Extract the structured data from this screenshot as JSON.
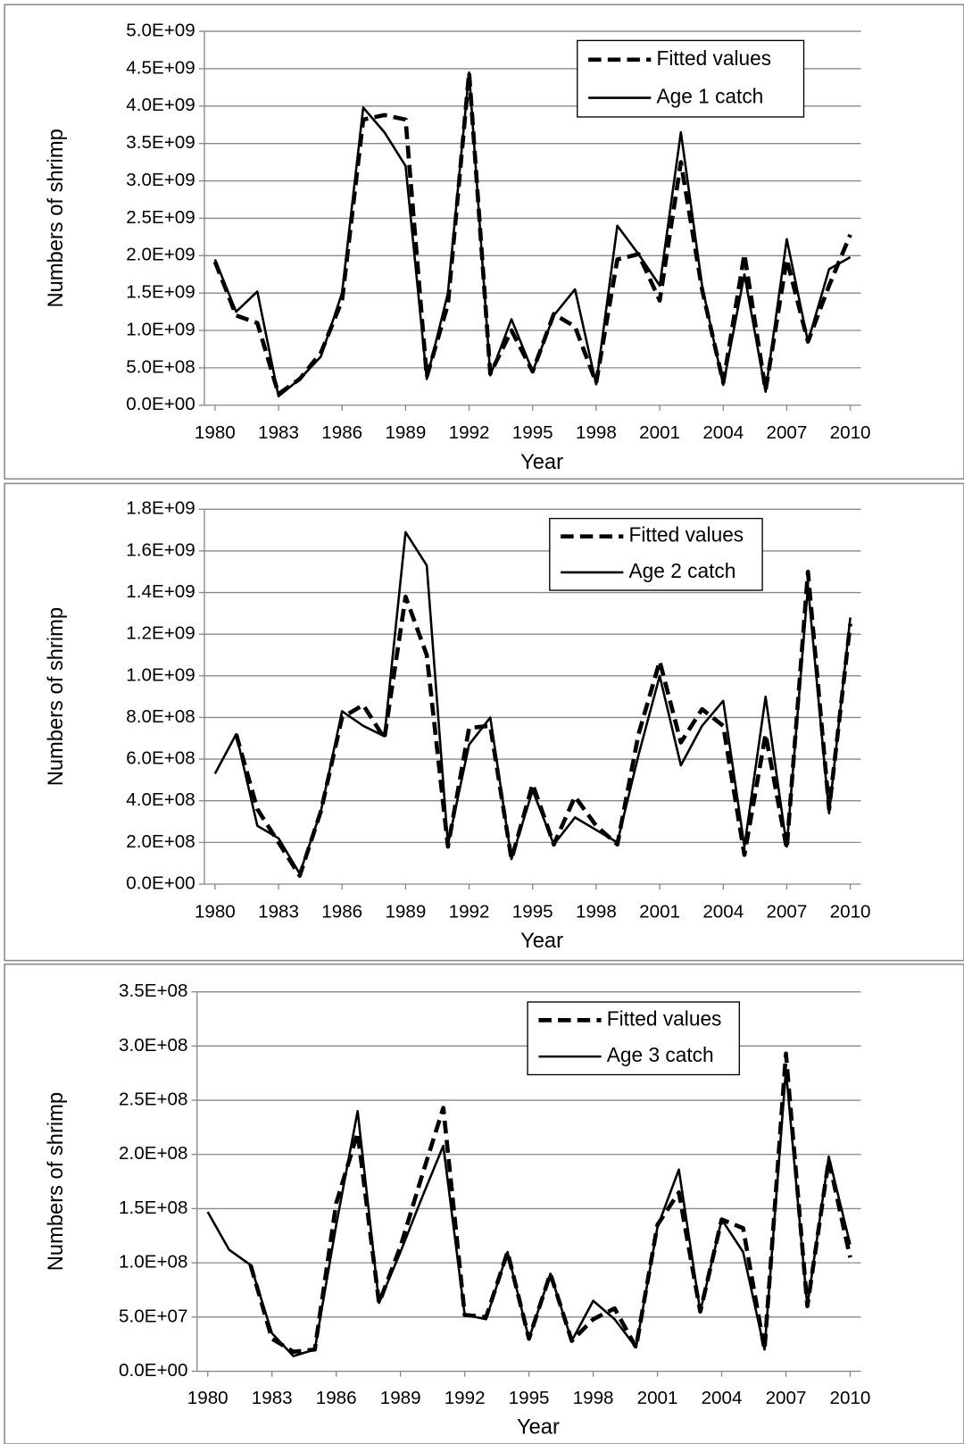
{
  "chart_data": [
    {
      "type": "line",
      "x_label": "Year",
      "y_label": "Numbers of shrimp",
      "grid": true,
      "legend": "upper right",
      "x": [
        1980,
        1981,
        1982,
        1983,
        1984,
        1985,
        1986,
        1987,
        1988,
        1989,
        1990,
        1991,
        1992,
        1993,
        1994,
        1995,
        1996,
        1997,
        1998,
        1999,
        2000,
        2001,
        2002,
        2003,
        2004,
        2005,
        2006,
        2007,
        2008,
        2009,
        2010
      ],
      "xlim": [
        1979.5,
        2010.5
      ],
      "xticks": [
        1980,
        1983,
        1986,
        1989,
        1992,
        1995,
        1998,
        2001,
        2004,
        2007,
        2010
      ],
      "ylim": [
        0,
        5000000000.0
      ],
      "yticks": [
        {
          "value": 0,
          "label": "0.0E+00"
        },
        {
          "value": 500000000.0,
          "label": "5.0E+08"
        },
        {
          "value": 1000000000.0,
          "label": "1.0E+09"
        },
        {
          "value": 1500000000.0,
          "label": "1.5E+09"
        },
        {
          "value": 2000000000.0,
          "label": "2.0E+09"
        },
        {
          "value": 2500000000.0,
          "label": "2.5E+09"
        },
        {
          "value": 3000000000.0,
          "label": "3.0E+09"
        },
        {
          "value": 3500000000.0,
          "label": "3.5E+09"
        },
        {
          "value": 4000000000.0,
          "label": "4.0E+09"
        },
        {
          "value": 4500000000.0,
          "label": "4.5E+09"
        },
        {
          "value": 5000000000.0,
          "label": "5.0E+09"
        }
      ],
      "series": [
        {
          "name": "Fitted values",
          "color": "#000000",
          "style": "dashed",
          "values": [
            1920000000.0,
            1200000000.0,
            1100000000.0,
            150000000.0,
            350000000.0,
            700000000.0,
            1400000000.0,
            3820000000.0,
            3880000000.0,
            3820000000.0,
            380000000.0,
            1350000000.0,
            4450000000.0,
            420000000.0,
            1000000000.0,
            450000000.0,
            1220000000.0,
            1050000000.0,
            300000000.0,
            1950000000.0,
            2020000000.0,
            1400000000.0,
            3250000000.0,
            1550000000.0,
            300000000.0,
            2020000000.0,
            200000000.0,
            1950000000.0,
            850000000.0,
            1600000000.0,
            2280000000.0
          ]
        },
        {
          "name": "Age 1 catch",
          "color": "#000000",
          "style": "solid",
          "values": [
            1950000000.0,
            1250000000.0,
            1520000000.0,
            120000000.0,
            350000000.0,
            650000000.0,
            1500000000.0,
            3980000000.0,
            3650000000.0,
            3200000000.0,
            350000000.0,
            1500000000.0,
            4450000000.0,
            400000000.0,
            1150000000.0,
            450000000.0,
            1200000000.0,
            1550000000.0,
            280000000.0,
            2400000000.0,
            2020000000.0,
            1600000000.0,
            3650000000.0,
            1600000000.0,
            270000000.0,
            1750000000.0,
            180000000.0,
            2220000000.0,
            850000000.0,
            1820000000.0,
            1980000000.0
          ]
        }
      ]
    },
    {
      "type": "line",
      "x_label": "Year",
      "y_label": "Numbers of shrimp",
      "grid": true,
      "legend": "upper right",
      "x": [
        1980,
        1981,
        1982,
        1983,
        1984,
        1985,
        1986,
        1987,
        1988,
        1989,
        1990,
        1991,
        1992,
        1993,
        1994,
        1995,
        1996,
        1997,
        1998,
        1999,
        2000,
        2001,
        2002,
        2003,
        2004,
        2005,
        2006,
        2007,
        2008,
        2009,
        2010
      ],
      "xlim": [
        1979.5,
        2010.5
      ],
      "xticks": [
        1980,
        1983,
        1986,
        1989,
        1992,
        1995,
        1998,
        2001,
        2004,
        2007,
        2010
      ],
      "ylim": [
        0,
        1800000000.0
      ],
      "yticks": [
        {
          "value": 0,
          "label": "0.0E+00"
        },
        {
          "value": 200000000.0,
          "label": "2.0E+08"
        },
        {
          "value": 400000000.0,
          "label": "4.0E+08"
        },
        {
          "value": 600000000.0,
          "label": "6.0E+08"
        },
        {
          "value": 800000000.0,
          "label": "8.0E+08"
        },
        {
          "value": 1000000000.0,
          "label": "1.0E+09"
        },
        {
          "value": 1200000000.0,
          "label": "1.2E+09"
        },
        {
          "value": 1400000000.0,
          "label": "1.4E+09"
        },
        {
          "value": 1600000000.0,
          "label": "1.6E+09"
        },
        {
          "value": 1800000000.0,
          "label": "1.8E+09"
        }
      ],
      "series": [
        {
          "name": "Fitted values",
          "color": "#000000",
          "style": "dashed",
          "values": [
            null,
            720000000.0,
            360000000.0,
            200000000.0,
            40000000.0,
            350000000.0,
            800000000.0,
            860000000.0,
            700000000.0,
            1380000000.0,
            1100000000.0,
            180000000.0,
            750000000.0,
            760000000.0,
            120000000.0,
            480000000.0,
            190000000.0,
            420000000.0,
            280000000.0,
            190000000.0,
            720000000.0,
            1070000000.0,
            680000000.0,
            840000000.0,
            760000000.0,
            140000000.0,
            720000000.0,
            170000000.0,
            1500000000.0,
            360000000.0,
            1250000000.0
          ]
        },
        {
          "name": "Age 2 catch",
          "color": "#000000",
          "style": "solid",
          "values": [
            530000000.0,
            720000000.0,
            280000000.0,
            220000000.0,
            50000000.0,
            350000000.0,
            830000000.0,
            760000000.0,
            710000000.0,
            1690000000.0,
            1530000000.0,
            190000000.0,
            670000000.0,
            800000000.0,
            120000000.0,
            450000000.0,
            190000000.0,
            320000000.0,
            260000000.0,
            200000000.0,
            620000000.0,
            1000000000.0,
            570000000.0,
            760000000.0,
            880000000.0,
            180000000.0,
            900000000.0,
            180000000.0,
            1430000000.0,
            340000000.0,
            1280000000.0
          ]
        }
      ]
    },
    {
      "type": "line",
      "x_label": "Year",
      "y_label": "Numbers of shrimp",
      "grid": true,
      "legend": "upper right",
      "x": [
        1980,
        1981,
        1982,
        1983,
        1984,
        1985,
        1986,
        1987,
        1988,
        1989,
        1990,
        1991,
        1992,
        1993,
        1994,
        1995,
        1996,
        1997,
        1998,
        1999,
        2000,
        2001,
        2002,
        2003,
        2004,
        2005,
        2006,
        2007,
        2008,
        2009,
        2010
      ],
      "xlim": [
        1979.5,
        2010.5
      ],
      "xticks": [
        1980,
        1983,
        1986,
        1989,
        1992,
        1995,
        1998,
        2001,
        2004,
        2007,
        2010
      ],
      "ylim": [
        0,
        350000000.0
      ],
      "yticks": [
        {
          "value": 0,
          "label": "0.0E+00"
        },
        {
          "value": 50000000.0,
          "label": "5.0E+07"
        },
        {
          "value": 100000000.0,
          "label": "1.0E+08"
        },
        {
          "value": 150000000.0,
          "label": "1.5E+08"
        },
        {
          "value": 200000000.0,
          "label": "2.0E+08"
        },
        {
          "value": 250000000.0,
          "label": "2.5E+08"
        },
        {
          "value": 300000000.0,
          "label": "3.0E+08"
        },
        {
          "value": 350000000.0,
          "label": "3.5E+08"
        }
      ],
      "series": [
        {
          "name": "Fitted values",
          "color": "#000000",
          "style": "dashed",
          "values": [
            null,
            null,
            98000000.0,
            30000000.0,
            18000000.0,
            20000000.0,
            155000000.0,
            220000000.0,
            63000000.0,
            115000000.0,
            180000000.0,
            243000000.0,
            52000000.0,
            50000000.0,
            110000000.0,
            30000000.0,
            90000000.0,
            28000000.0,
            48000000.0,
            58000000.0,
            22000000.0,
            135000000.0,
            165000000.0,
            55000000.0,
            140000000.0,
            132000000.0,
            20000000.0,
            293000000.0,
            60000000.0,
            195000000.0,
            105000000.0
          ]
        },
        {
          "name": "Age 3 catch",
          "color": "#000000",
          "style": "solid",
          "values": [
            147000000.0,
            112000000.0,
            98000000.0,
            35000000.0,
            14000000.0,
            20000000.0,
            135000000.0,
            240000000.0,
            63000000.0,
            110000000.0,
            160000000.0,
            208000000.0,
            52000000.0,
            48000000.0,
            110000000.0,
            30000000.0,
            90000000.0,
            28000000.0,
            65000000.0,
            48000000.0,
            22000000.0,
            133000000.0,
            186000000.0,
            55000000.0,
            140000000.0,
            110000000.0,
            20000000.0,
            278000000.0,
            60000000.0,
            198000000.0,
            117000000.0
          ]
        }
      ]
    }
  ]
}
